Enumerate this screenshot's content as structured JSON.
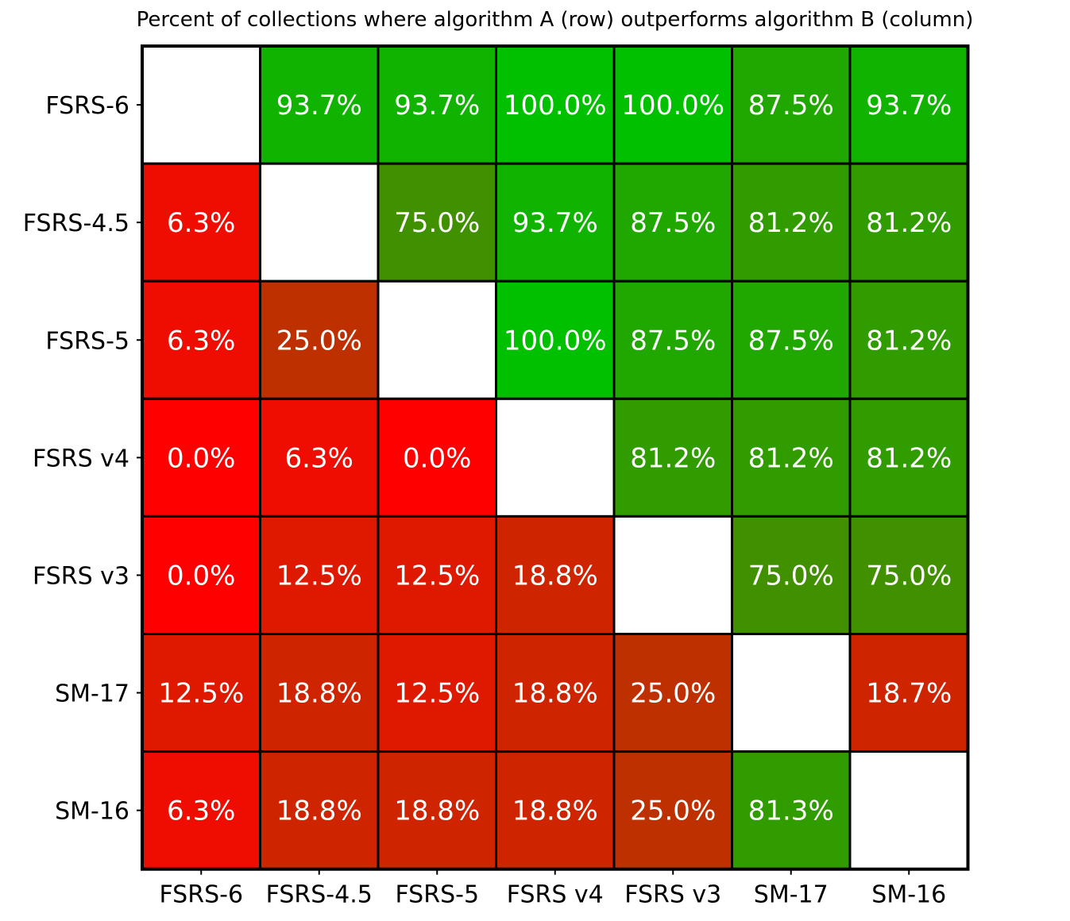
{
  "chart_data": {
    "type": "heatmap",
    "title": "Percent of collections where algorithm A (row) outperforms algorithm B (column)",
    "rows": [
      "FSRS-6",
      "FSRS-4.5",
      "FSRS-5",
      "FSRS v4",
      "FSRS v3",
      "SM-17",
      "SM-16"
    ],
    "columns": [
      "FSRS-6",
      "FSRS-4.5",
      "FSRS-5",
      "FSRS v4",
      "FSRS v3",
      "SM-17",
      "SM-16"
    ],
    "values": [
      [
        null,
        93.7,
        93.7,
        100.0,
        100.0,
        87.5,
        93.7
      ],
      [
        6.3,
        null,
        75.0,
        93.7,
        87.5,
        81.2,
        81.2
      ],
      [
        6.3,
        25.0,
        null,
        100.0,
        87.5,
        87.5,
        81.2
      ],
      [
        0.0,
        6.3,
        0.0,
        null,
        81.2,
        81.2,
        81.2
      ],
      [
        0.0,
        12.5,
        12.5,
        18.8,
        null,
        75.0,
        75.0
      ],
      [
        12.5,
        18.8,
        12.5,
        18.8,
        25.0,
        null,
        18.7
      ],
      [
        6.3,
        18.8,
        18.8,
        18.8,
        25.0,
        81.3,
        null
      ]
    ],
    "cell_labels": [
      [
        "",
        "93.7%",
        "93.7%",
        "100.0%",
        "100.0%",
        "87.5%",
        "93.7%"
      ],
      [
        "6.3%",
        "",
        "75.0%",
        "93.7%",
        "87.5%",
        "81.2%",
        "81.2%"
      ],
      [
        "6.3%",
        "25.0%",
        "",
        "100.0%",
        "87.5%",
        "87.5%",
        "81.2%"
      ],
      [
        "0.0%",
        "6.3%",
        "0.0%",
        "",
        "81.2%",
        "81.2%",
        "81.2%"
      ],
      [
        "0.0%",
        "12.5%",
        "12.5%",
        "18.8%",
        "",
        "75.0%",
        "75.0%"
      ],
      [
        "12.5%",
        "18.8%",
        "12.5%",
        "18.8%",
        "25.0%",
        "",
        "18.7%"
      ],
      [
        "6.3%",
        "18.8%",
        "18.8%",
        "18.8%",
        "25.0%",
        "81.3%",
        ""
      ]
    ],
    "colormap": {
      "low": "#ff0000",
      "high": "#00c000",
      "diagonal": "#ffffff"
    },
    "range": [
      0,
      100
    ],
    "grid": true
  }
}
